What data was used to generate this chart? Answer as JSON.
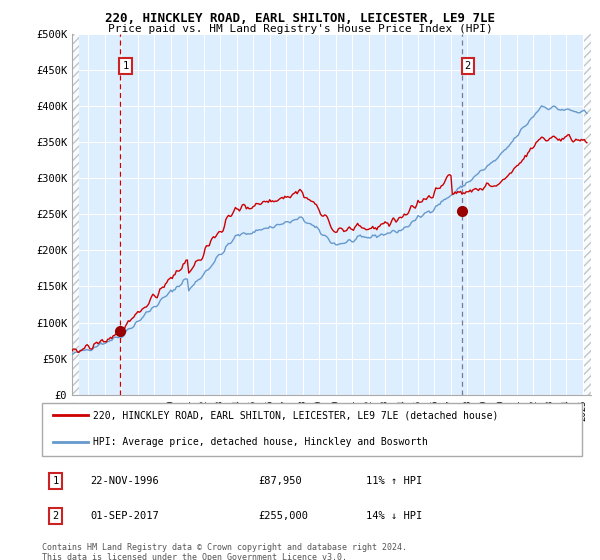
{
  "title1": "220, HINCKLEY ROAD, EARL SHILTON, LEICESTER, LE9 7LE",
  "title2": "Price paid vs. HM Land Registry's House Price Index (HPI)",
  "ylabel_ticks": [
    "£0",
    "£50K",
    "£100K",
    "£150K",
    "£200K",
    "£250K",
    "£300K",
    "£350K",
    "£400K",
    "£450K",
    "£500K"
  ],
  "ytick_values": [
    0,
    50000,
    100000,
    150000,
    200000,
    250000,
    300000,
    350000,
    400000,
    450000,
    500000
  ],
  "xlim_start": 1994.0,
  "xlim_end": 2025.5,
  "ylim": [
    0,
    500000
  ],
  "transaction1": {
    "date_label": "22-NOV-1996",
    "date_num": 1996.896,
    "price": 87950,
    "hpi_pct": "11%",
    "direction": "↑",
    "label": "1"
  },
  "transaction2": {
    "date_label": "01-SEP-2017",
    "date_num": 2017.667,
    "price": 255000,
    "hpi_pct": "14%",
    "direction": "↓",
    "label": "2"
  },
  "legend_line1": "220, HINCKLEY ROAD, EARL SHILTON, LEICESTER, LE9 7LE (detached house)",
  "legend_line2": "HPI: Average price, detached house, Hinckley and Bosworth",
  "footer1": "Contains HM Land Registry data © Crown copyright and database right 2024.",
  "footer2": "This data is licensed under the Open Government Licence v3.0.",
  "line_color_red": "#cc0000",
  "line_color_blue": "#6699cc",
  "bg_color": "#ddeeff",
  "grid_color": "#ffffff",
  "vline1_color": "#cc0000",
  "vline2_color": "#777799",
  "point_color": "#990000",
  "annotation_box_color": "#cc2222"
}
